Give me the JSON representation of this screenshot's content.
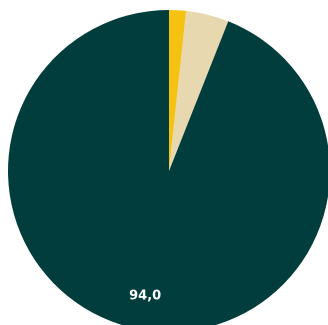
{
  "chart_data": {
    "type": "pie",
    "title": "",
    "slices": [
      {
        "value": 1.7,
        "color": "#F5C211",
        "label": ""
      },
      {
        "value": 4.3,
        "color": "#E8D8B0",
        "label": ""
      },
      {
        "value": 94.0,
        "color": "#003D3C",
        "label": "94,0"
      }
    ],
    "start_angle_deg": 0,
    "direction": "clockwise",
    "legend": "none"
  }
}
